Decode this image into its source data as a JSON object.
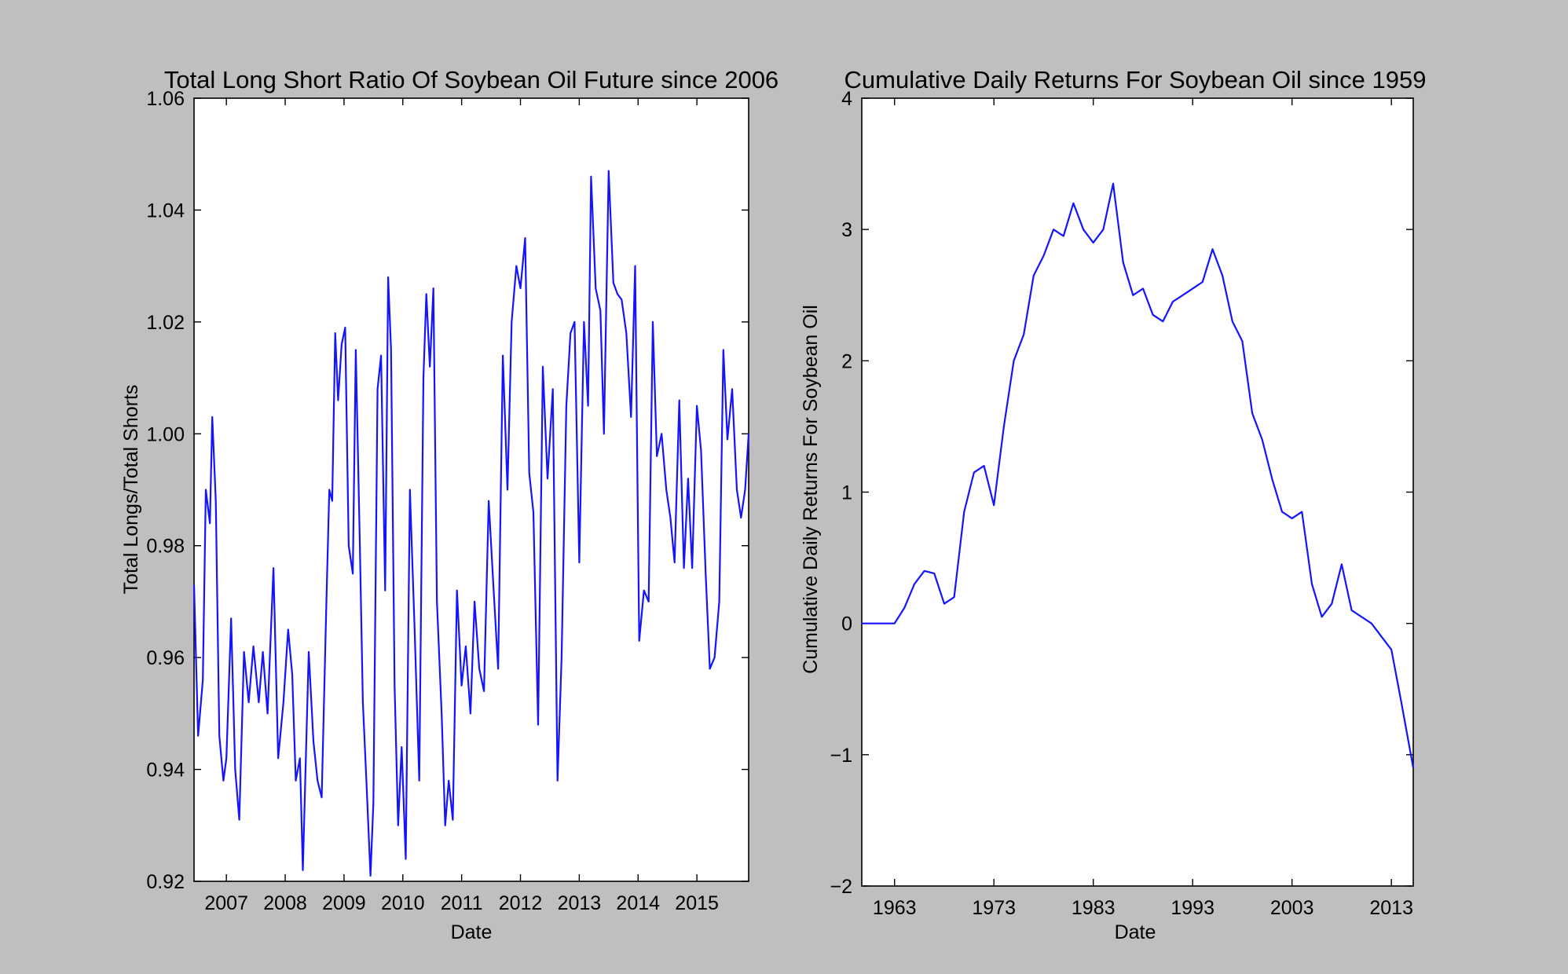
{
  "chart_data": [
    {
      "type": "line",
      "title": "Total Long Short Ratio Of Soybean Oil Future since 2006",
      "xlabel": "Date",
      "ylabel": "Total Longs/Total Shorts",
      "xlim": [
        2006.45,
        2015.88
      ],
      "ylim": [
        0.92,
        1.06
      ],
      "xticks": [
        2007,
        2008,
        2009,
        2010,
        2011,
        2012,
        2013,
        2014,
        2015
      ],
      "xtick_labels": [
        "2007",
        "2008",
        "2009",
        "2010",
        "2011",
        "2012",
        "2013",
        "2014",
        "2015"
      ],
      "yticks": [
        0.92,
        0.94,
        0.96,
        0.98,
        1.0,
        1.02,
        1.04,
        1.06
      ],
      "ytick_labels": [
        "0.92",
        "0.94",
        "0.96",
        "0.98",
        "1.00",
        "1.02",
        "1.04",
        "1.06"
      ],
      "grid": false,
      "color": "#1414ff",
      "series": [
        {
          "name": "Total Longs/Total Shorts",
          "x": [
            2006.45,
            2006.52,
            2006.6,
            2006.65,
            2006.72,
            2006.76,
            2006.82,
            2006.88,
            2006.95,
            2007.0,
            2007.08,
            2007.15,
            2007.22,
            2007.3,
            2007.38,
            2007.46,
            2007.55,
            2007.62,
            2007.7,
            2007.8,
            2007.88,
            2007.97,
            2008.05,
            2008.12,
            2008.18,
            2008.25,
            2008.3,
            2008.4,
            2008.48,
            2008.55,
            2008.62,
            2008.7,
            2008.75,
            2008.8,
            2008.85,
            2008.9,
            2008.96,
            2009.02,
            2009.08,
            2009.15,
            2009.2,
            2009.27,
            2009.32,
            2009.38,
            2009.45,
            2009.5,
            2009.57,
            2009.63,
            2009.7,
            2009.75,
            2009.8,
            2009.86,
            2009.92,
            2009.98,
            2010.05,
            2010.12,
            2010.2,
            2010.28,
            2010.35,
            2010.4,
            2010.46,
            2010.52,
            2010.58,
            2010.66,
            2010.72,
            2010.78,
            2010.85,
            2010.92,
            2011.0,
            2011.07,
            2011.15,
            2011.22,
            2011.3,
            2011.38,
            2011.46,
            2011.55,
            2011.62,
            2011.7,
            2011.78,
            2011.85,
            2011.93,
            2012.0,
            2012.08,
            2012.15,
            2012.22,
            2012.3,
            2012.38,
            2012.46,
            2012.55,
            2012.63,
            2012.7,
            2012.78,
            2012.85,
            2012.92,
            2013.0,
            2013.08,
            2013.15,
            2013.2,
            2013.28,
            2013.36,
            2013.42,
            2013.5,
            2013.58,
            2013.65,
            2013.72,
            2013.8,
            2013.88,
            2013.95,
            2014.02,
            2014.1,
            2014.18,
            2014.25,
            2014.32,
            2014.4,
            2014.48,
            2014.55,
            2014.62,
            2014.7,
            2014.78,
            2014.85,
            2014.92,
            2015.0,
            2015.07,
            2015.15,
            2015.22,
            2015.3,
            2015.38,
            2015.45,
            2015.52,
            2015.6,
            2015.68,
            2015.75,
            2015.82,
            2015.88
          ],
          "y": [
            0.973,
            0.946,
            0.956,
            0.99,
            0.984,
            1.003,
            0.988,
            0.946,
            0.938,
            0.942,
            0.967,
            0.94,
            0.931,
            0.961,
            0.952,
            0.962,
            0.952,
            0.961,
            0.95,
            0.976,
            0.942,
            0.952,
            0.965,
            0.957,
            0.938,
            0.942,
            0.922,
            0.961,
            0.945,
            0.938,
            0.935,
            0.97,
            0.99,
            0.988,
            1.018,
            1.006,
            1.016,
            1.019,
            0.98,
            0.975,
            1.015,
            0.98,
            0.952,
            0.938,
            0.921,
            0.934,
            1.008,
            1.014,
            0.972,
            1.028,
            1.015,
            0.955,
            0.93,
            0.944,
            0.924,
            0.99,
            0.965,
            0.938,
            1.01,
            1.025,
            1.012,
            1.026,
            0.97,
            0.95,
            0.93,
            0.938,
            0.931,
            0.972,
            0.955,
            0.962,
            0.95,
            0.97,
            0.958,
            0.954,
            0.988,
            0.971,
            0.958,
            1.014,
            0.99,
            1.02,
            1.03,
            1.026,
            1.035,
            0.993,
            0.986,
            0.948,
            1.012,
            0.992,
            1.008,
            0.938,
            0.96,
            1.005,
            1.018,
            1.02,
            0.977,
            1.02,
            1.005,
            1.046,
            1.026,
            1.022,
            1.0,
            1.047,
            1.027,
            1.025,
            1.024,
            1.018,
            1.003,
            1.03,
            0.963,
            0.972,
            0.97,
            1.02,
            0.996,
            1.0,
            0.99,
            0.985,
            0.977,
            1.006,
            0.976,
            0.992,
            0.976,
            1.005,
            0.997,
            0.975,
            0.958,
            0.96,
            0.97,
            1.015,
            0.999,
            1.008,
            0.99,
            0.985,
            0.99,
            1.0
          ]
        }
      ]
    },
    {
      "type": "line",
      "title": "Cumulative Daily Returns For Soybean Oil since 1959",
      "xlabel": "Date",
      "ylabel": "Cumulative Daily Returns For Soybean Oil",
      "xlim": [
        1959.7,
        2015.2
      ],
      "ylim": [
        -2,
        4
      ],
      "xticks": [
        1963,
        1973,
        1983,
        1993,
        2003,
        2013
      ],
      "xtick_labels": [
        "1963",
        "1973",
        "1983",
        "1993",
        "2003",
        "2013"
      ],
      "yticks": [
        -2,
        -1,
        0,
        1,
        2,
        3,
        4
      ],
      "ytick_labels": [
        "−2",
        "−1",
        "0",
        "1",
        "2",
        "3",
        "4"
      ],
      "grid": false,
      "color": "#1414ff",
      "series": [
        {
          "name": "Cumulative Daily Returns For Soybean Oil",
          "x": [
            1959.7,
            1963.0,
            1964.0,
            1965.0,
            1966.0,
            1967.0,
            1968.0,
            1969.0,
            1970.0,
            1971.0,
            1972.0,
            1973.0,
            1974.0,
            1975.0,
            1976.0,
            1977.0,
            1978.0,
            1979.0,
            1980.0,
            1981.0,
            1982.0,
            1983.0,
            1984.0,
            1985.0,
            1986.0,
            1987.0,
            1988.0,
            1989.0,
            1990.0,
            1991.0,
            1992.0,
            1993.0,
            1994.0,
            1995.0,
            1996.0,
            1997.0,
            1998.0,
            1999.0,
            2000.0,
            2001.0,
            2002.0,
            2003.0,
            2004.0,
            2005.0,
            2006.0,
            2007.0,
            2008.0,
            2009.0,
            2010.0,
            2011.0,
            2012.0,
            2013.0,
            2014.0,
            2015.2
          ],
          "y": [
            0.0,
            0.0,
            0.12,
            0.3,
            0.4,
            0.38,
            0.15,
            0.2,
            0.85,
            1.15,
            1.2,
            0.9,
            1.5,
            2.0,
            2.2,
            2.65,
            2.8,
            3.0,
            2.95,
            3.2,
            3.0,
            2.9,
            3.0,
            3.35,
            2.75,
            2.5,
            2.55,
            2.35,
            2.3,
            2.45,
            2.5,
            2.55,
            2.6,
            2.85,
            2.65,
            2.3,
            2.15,
            1.6,
            1.4,
            1.1,
            0.85,
            0.8,
            0.85,
            0.3,
            0.05,
            0.15,
            0.45,
            0.1,
            0.05,
            0.0,
            -0.1,
            -0.2,
            -0.6,
            -1.1
          ]
        }
      ]
    }
  ]
}
